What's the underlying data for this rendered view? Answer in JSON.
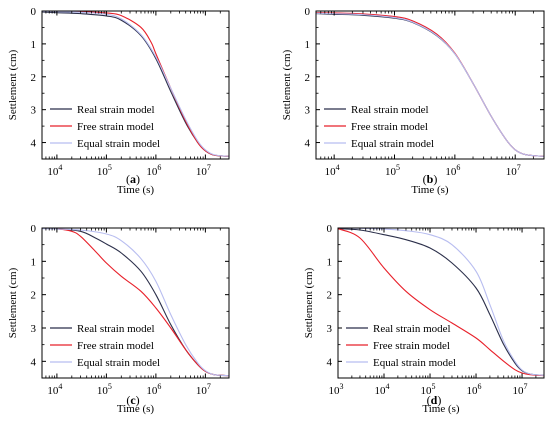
{
  "panels": [
    {
      "tag": "(a)",
      "chart_data": {
        "type": "line",
        "xlabel": "Time (s)",
        "ylabel": "Settlement (cm)",
        "xscale": "log",
        "xlim": [
          5000,
          30000000
        ],
        "ylim": [
          0,
          4.5
        ],
        "y_inverted": true,
        "xticks": [
          10000,
          100000,
          1000000,
          10000000
        ],
        "xtick_labels": [
          "10^4",
          "10^5",
          "10^6",
          "10^7"
        ],
        "yticks": [
          0,
          1,
          2,
          3,
          4
        ],
        "ytick_labels": [
          "0",
          "1",
          "2",
          "3",
          "4"
        ],
        "legend_position": "bottom-left",
        "series": [
          {
            "name": "Real strain model",
            "color": "#2b2f4a",
            "x": [
              5000,
              10000,
              30000,
              100000,
              200000,
              500000,
              1000000,
              2000000,
              4000000,
              7000000,
              10000000,
              15000000,
              30000000
            ],
            "y": [
              0.03,
              0.05,
              0.08,
              0.15,
              0.28,
              0.75,
              1.45,
              2.45,
              3.4,
              4.0,
              4.25,
              4.38,
              4.42
            ]
          },
          {
            "name": "Free strain model",
            "color": "#e8202a",
            "x": [
              5000,
              10000,
              30000,
              100000,
              200000,
              500000,
              800000,
              1000000,
              2000000,
              4000000,
              7000000,
              10000000,
              15000000,
              30000000
            ],
            "y": [
              0.0,
              0.01,
              0.02,
              0.06,
              0.14,
              0.5,
              0.95,
              1.3,
              2.35,
              3.35,
              4.0,
              4.25,
              4.38,
              4.42
            ]
          },
          {
            "name": "Equal strain model",
            "color": "#b8bdf0",
            "x": [
              5000,
              10000,
              30000,
              100000,
              200000,
              500000,
              1000000,
              2000000,
              4000000,
              7000000,
              10000000,
              15000000,
              30000000
            ],
            "y": [
              0.01,
              0.02,
              0.04,
              0.1,
              0.24,
              0.72,
              1.4,
              2.35,
              3.3,
              3.95,
              4.22,
              4.37,
              4.42
            ]
          }
        ]
      }
    },
    {
      "tag": "(b)",
      "chart_data": {
        "type": "line",
        "xlabel": "Time (s)",
        "ylabel": "Settlement (cm)",
        "xscale": "log",
        "xlim": [
          5000,
          30000000
        ],
        "ylim": [
          0,
          4.5
        ],
        "y_inverted": true,
        "xticks": [
          10000,
          100000,
          1000000,
          10000000
        ],
        "xtick_labels": [
          "10^4",
          "10^5",
          "10^6",
          "10^7"
        ],
        "yticks": [
          0,
          1,
          2,
          3,
          4
        ],
        "ytick_labels": [
          "0",
          "1",
          "2",
          "3",
          "4"
        ],
        "legend_position": "bottom-left",
        "series": [
          {
            "name": "Real strain model",
            "color": "#2b2f4a",
            "x": [
              5000,
              10000,
              30000,
              100000,
              200000,
              500000,
              1000000,
              2000000,
              4000000,
              7000000,
              10000000,
              15000000,
              30000000
            ],
            "y": [
              0.08,
              0.1,
              0.13,
              0.22,
              0.35,
              0.75,
              1.3,
              2.2,
              3.2,
              3.9,
              4.22,
              4.37,
              4.42
            ]
          },
          {
            "name": "Free strain model",
            "color": "#e8202a",
            "x": [
              5000,
              10000,
              30000,
              100000,
              200000,
              500000,
              1000000,
              2000000,
              4000000,
              7000000,
              10000000,
              15000000,
              30000000
            ],
            "y": [
              0.05,
              0.06,
              0.09,
              0.17,
              0.3,
              0.7,
              1.28,
              2.2,
              3.2,
              3.9,
              4.22,
              4.37,
              4.42
            ]
          },
          {
            "name": "Equal strain model",
            "color": "#b8bdf0",
            "x": [
              5000,
              10000,
              30000,
              100000,
              200000,
              500000,
              1000000,
              2000000,
              4000000,
              7000000,
              10000000,
              15000000,
              30000000
            ],
            "y": [
              0.07,
              0.08,
              0.11,
              0.2,
              0.34,
              0.74,
              1.3,
              2.2,
              3.2,
              3.9,
              4.22,
              4.37,
              4.42
            ]
          }
        ]
      }
    },
    {
      "tag": "(c)",
      "chart_data": {
        "type": "line",
        "xlabel": "Time (s)",
        "ylabel": "Settlement (cm)",
        "xscale": "log",
        "xlim": [
          5000,
          30000000
        ],
        "ylim": [
          0,
          4.5
        ],
        "y_inverted": true,
        "xticks": [
          10000,
          100000,
          1000000,
          10000000
        ],
        "xtick_labels": [
          "10^4",
          "10^5",
          "10^6",
          "10^7"
        ],
        "yticks": [
          0,
          1,
          2,
          3,
          4
        ],
        "ytick_labels": [
          "0",
          "1",
          "2",
          "3",
          "4"
        ],
        "legend_position": "bottom-left",
        "series": [
          {
            "name": "Real strain model",
            "color": "#2b2f4a",
            "x": [
              5000,
              10000,
              30000,
              60000,
              100000,
              200000,
              500000,
              1000000,
              2000000,
              4000000,
              7000000,
              10000000,
              15000000,
              30000000
            ],
            "y": [
              0.01,
              0.03,
              0.1,
              0.3,
              0.48,
              0.75,
              1.3,
              2.0,
              2.9,
              3.65,
              4.1,
              4.3,
              4.4,
              4.43
            ]
          },
          {
            "name": "Free strain model",
            "color": "#e8202a",
            "x": [
              5000,
              10000,
              20000,
              30000,
              60000,
              100000,
              200000,
              500000,
              1000000,
              2000000,
              4000000,
              7000000,
              10000000,
              15000000,
              30000000
            ],
            "y": [
              0.0,
              0.02,
              0.1,
              0.25,
              0.7,
              1.05,
              1.45,
              1.9,
              2.4,
              3.0,
              3.65,
              4.1,
              4.3,
              4.4,
              4.43
            ]
          },
          {
            "name": "Equal strain model",
            "color": "#b8bdf0",
            "x": [
              5000,
              10000,
              30000,
              100000,
              200000,
              500000,
              1000000,
              2000000,
              4000000,
              7000000,
              10000000,
              15000000,
              30000000
            ],
            "y": [
              0.02,
              0.03,
              0.06,
              0.18,
              0.38,
              0.92,
              1.6,
              2.6,
              3.5,
              4.05,
              4.28,
              4.4,
              4.43
            ]
          }
        ]
      }
    },
    {
      "tag": "(d)",
      "chart_data": {
        "type": "line",
        "xlabel": "Time (s)",
        "ylabel": "Settlement (cm)",
        "xscale": "log",
        "xlim": [
          1000,
          30000000
        ],
        "ylim": [
          0,
          4.5
        ],
        "y_inverted": true,
        "xticks": [
          1000,
          10000,
          100000,
          1000000,
          10000000
        ],
        "xtick_labels": [
          "10^3",
          "10^4",
          "10^5",
          "10^6",
          "10^7"
        ],
        "yticks": [
          0,
          1,
          2,
          3,
          4
        ],
        "ytick_labels": [
          "0",
          "1",
          "2",
          "3",
          "4"
        ],
        "legend_position": "bottom-left",
        "series": [
          {
            "name": "Real strain model",
            "color": "#2b2f4a",
            "x": [
              1000,
              3000,
              10000,
              30000,
              100000,
              300000,
              1000000,
              2000000,
              4000000,
              7000000,
              10000000,
              15000000,
              30000000
            ],
            "y": [
              0.02,
              0.06,
              0.2,
              0.35,
              0.6,
              1.05,
              1.8,
              2.6,
              3.5,
              4.05,
              4.28,
              4.38,
              4.42
            ]
          },
          {
            "name": "Free strain model",
            "color": "#e8202a",
            "x": [
              1000,
              3000,
              10000,
              30000,
              100000,
              300000,
              1000000,
              2000000,
              4000000,
              7000000,
              10000000,
              15000000,
              30000000
            ],
            "y": [
              0.02,
              0.3,
              1.2,
              1.9,
              2.45,
              2.85,
              3.3,
              3.65,
              4.0,
              4.25,
              4.35,
              4.4,
              4.43
            ]
          },
          {
            "name": "Equal strain model",
            "color": "#b8bdf0",
            "x": [
              1000,
              3000,
              10000,
              30000,
              100000,
              300000,
              1000000,
              2000000,
              4000000,
              7000000,
              10000000,
              15000000,
              30000000
            ],
            "y": [
              0.0,
              0.01,
              0.03,
              0.08,
              0.2,
              0.5,
              1.3,
              2.3,
              3.4,
              4.0,
              4.26,
              4.38,
              4.42
            ]
          }
        ]
      }
    }
  ]
}
